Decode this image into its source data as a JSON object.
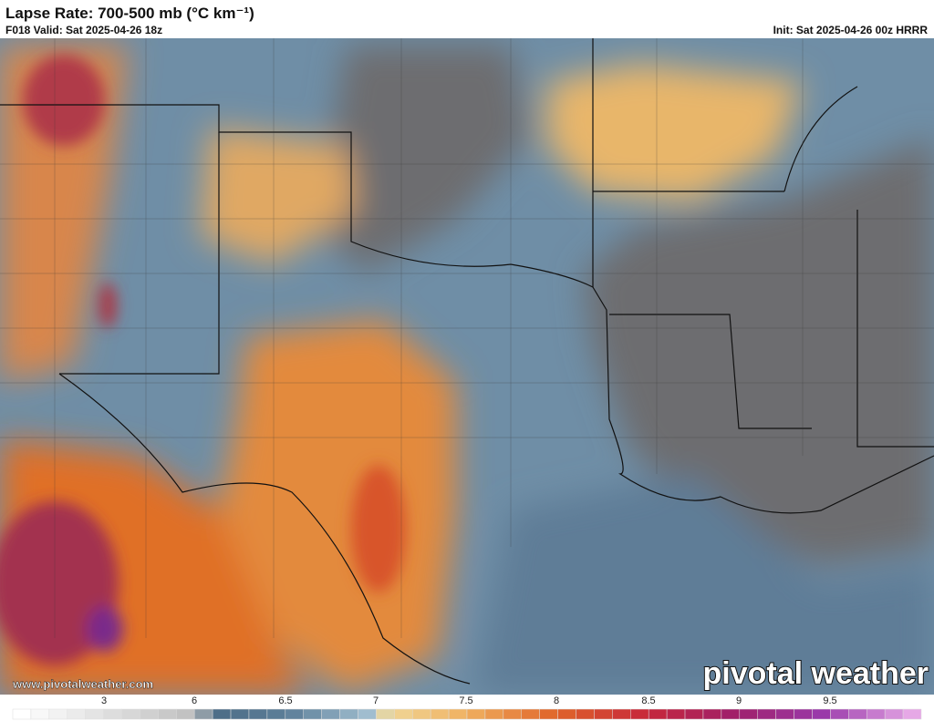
{
  "header": {
    "title": "Lapse Rate: 700-500 mb (°C km⁻¹)",
    "valid": "F018 Valid: Sat 2025-04-26 18z",
    "init": "Init: Sat 2025-04-26 00z HRRR"
  },
  "watermark": {
    "url": "www.pivotalweather.com",
    "brand": "pivotal weather"
  },
  "colorbar": {
    "labels": [
      "3",
      "6",
      "6.5",
      "7",
      "7.5",
      "8",
      "8.5",
      "9",
      "9.5"
    ]
  }
}
